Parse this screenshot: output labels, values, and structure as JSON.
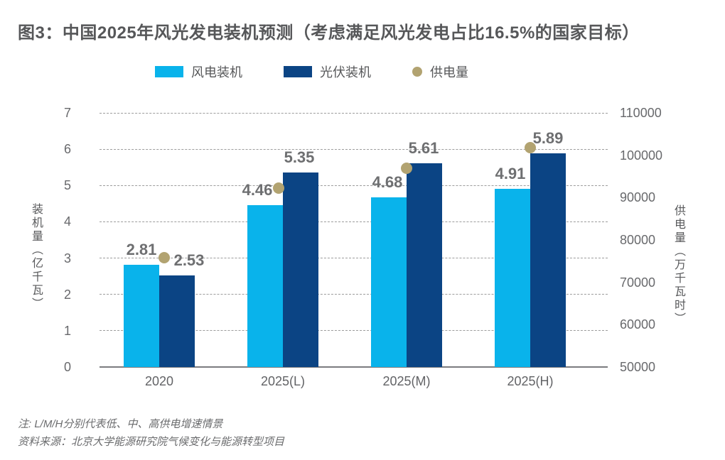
{
  "title": "图3：中国2025年风光发电装机预测（考虑满足风光发电占比16.5%的国家目标）",
  "legend": [
    {
      "label": "风电装机",
      "type": "swatch",
      "color": "#09b3eb"
    },
    {
      "label": "光伏装机",
      "type": "swatch",
      "color": "#0b4484"
    },
    {
      "label": "供电量",
      "type": "dot",
      "color": "#b2a371"
    }
  ],
  "chart_data": {
    "type": "bar",
    "subtype": "grouped bars with secondary-axis point series",
    "categories": [
      "2020",
      "2025(L)",
      "2025(M)",
      "2025(H)"
    ],
    "series": [
      {
        "name": "风电装机",
        "render": "bar",
        "axis": "left",
        "color": "#09b3eb",
        "values": [
          2.81,
          4.46,
          4.68,
          4.91
        ]
      },
      {
        "name": "光伏装机",
        "render": "bar",
        "axis": "left",
        "color": "#0b4484",
        "values": [
          2.53,
          5.35,
          5.61,
          5.89
        ]
      },
      {
        "name": "供电量",
        "render": "point",
        "axis": "right",
        "color": "#b2a371",
        "values_estimated": [
          75800,
          92200,
          96900,
          101800
        ],
        "note": "dots unlabeled in figure; values read off right axis gridlines"
      }
    ],
    "left_axis": {
      "label": "装机量（亿千瓦）",
      "min": 0,
      "max": 7,
      "ticks": [
        0,
        1,
        2,
        3,
        4,
        5,
        6,
        7
      ]
    },
    "right_axis": {
      "label": "供电量（万千瓦时）",
      "min": 50000,
      "max": 110000,
      "ticks": [
        50000,
        60000,
        70000,
        80000,
        90000,
        100000,
        110000
      ]
    },
    "grid": "horizontal dashed",
    "legend_position": "top"
  },
  "notes": [
    "注: L/M/H分别代表低、中、高供电增速情景",
    "资料来源：北京大学能源研究院气候变化与能源转型项目"
  ]
}
